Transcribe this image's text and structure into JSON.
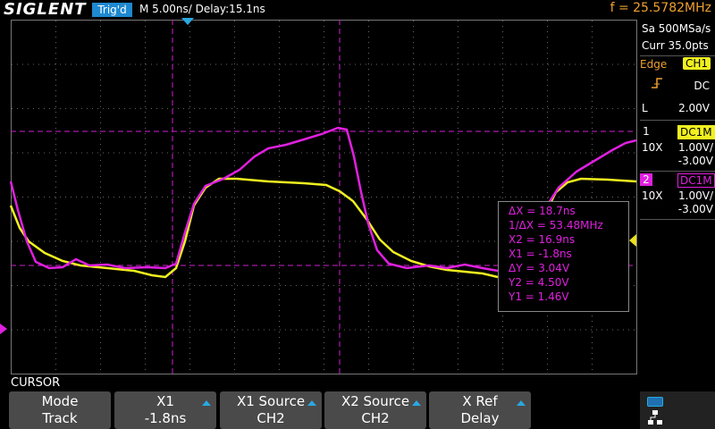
{
  "header": {
    "logo": "SIGLENT",
    "trig_status": "Trig'd",
    "timebase": "M 5.00ns/ Delay:15.1ns",
    "frequency": "f = 25.5782MHz"
  },
  "side_panel": {
    "sample_rate": "Sa 500MSa/s",
    "points": "Curr 35.0pts",
    "trigger": {
      "mode": "Edge",
      "source": "CH1",
      "coupling": "DC",
      "level_label": "L",
      "level": "2.00V"
    },
    "channels": [
      {
        "number": "1",
        "coupling": "DC1M",
        "probe": "10X",
        "scale": "1.00V/",
        "offset": "-3.00V"
      },
      {
        "number": "2",
        "coupling": "DC1M",
        "probe": "10X",
        "scale": "1.00V/",
        "offset": "-3.00V"
      }
    ]
  },
  "cursor_readout": [
    "ΔX = 18.7ns",
    "1/ΔX = 53.48MHz",
    "X2 = 16.9ns",
    "X1 = -1.8ns",
    "ΔY = 3.04V",
    "Y2 = 4.50V",
    "Y1 = 1.46V"
  ],
  "menu": {
    "title": "CURSOR",
    "buttons": [
      {
        "label": "Mode",
        "value": "Track"
      },
      {
        "label": "X1",
        "value": "-1.8ns"
      },
      {
        "label": "X1 Source",
        "value": "CH2"
      },
      {
        "label": "X2 Source",
        "value": "CH2"
      },
      {
        "label": "X Ref",
        "value": "Delay"
      }
    ]
  }
}
